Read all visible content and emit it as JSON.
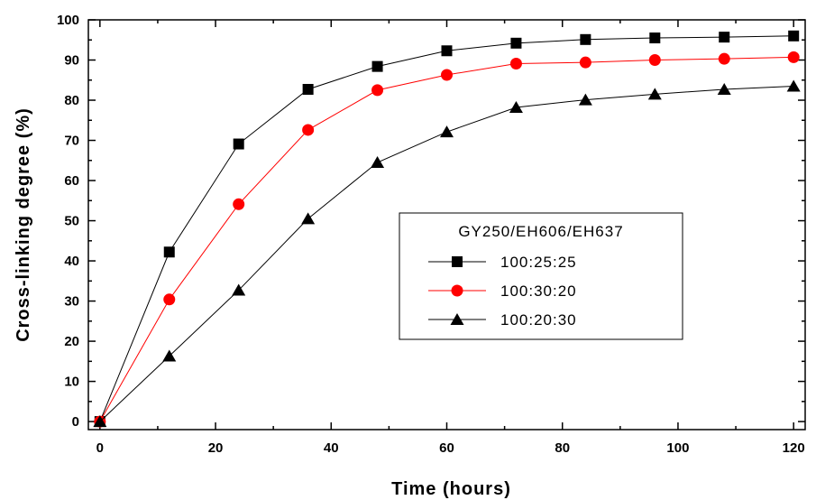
{
  "chart_data": {
    "type": "line",
    "xlabel": "Time  (hours)",
    "ylabel": "Cross-linking degree  (%)",
    "xlim": [
      -2,
      122
    ],
    "ylim": [
      -2,
      100
    ],
    "xticks": [
      0,
      20,
      40,
      60,
      80,
      100,
      120
    ],
    "yticks": [
      0,
      10,
      20,
      30,
      40,
      50,
      60,
      70,
      80,
      90,
      100
    ],
    "x": [
      0,
      12,
      24,
      36,
      48,
      60,
      72,
      84,
      96,
      108,
      120
    ],
    "legend": {
      "title": "GY250/EH606/EH637",
      "placement": "center-right"
    },
    "series": [
      {
        "name": "100:25:25",
        "marker": "square",
        "color": "#000000",
        "values": [
          0,
          42.2,
          69.1,
          82.7,
          88.4,
          92.3,
          94.2,
          95.1,
          95.5,
          95.7,
          96.0
        ]
      },
      {
        "name": "100:30:20",
        "marker": "circle",
        "color": "#ff0000",
        "values": [
          0,
          30.4,
          54.1,
          72.6,
          82.5,
          86.3,
          89.1,
          89.4,
          90.0,
          90.3,
          90.7
        ]
      },
      {
        "name": "100:20:30",
        "marker": "triangle",
        "color": "#000000",
        "values": [
          0,
          16.3,
          32.7,
          50.5,
          64.5,
          72.1,
          78.2,
          80.1,
          81.5,
          82.7,
          83.5
        ]
      }
    ]
  }
}
